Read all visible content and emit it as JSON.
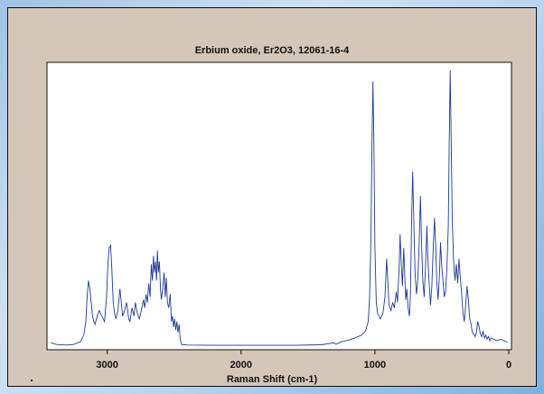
{
  "chart_data": {
    "type": "line",
    "title": "Erbium oxide, Er2O3, 12061-16-4",
    "xlabel": "Raman Shift (cm-1)",
    "ylabel": "",
    "x_reversed": true,
    "xlim": [
      3450,
      -20
    ],
    "xticks": [
      3000,
      2000,
      1000,
      0
    ],
    "tick_labels": [
      "3000",
      "2000",
      "1000",
      "0"
    ],
    "ylim": [
      0,
      100
    ],
    "grid": false,
    "series": [
      {
        "color": "#1f3a93",
        "points": [
          [
            3420,
            1.2
          ],
          [
            3380,
            0.6
          ],
          [
            3300,
            0.4
          ],
          [
            3250,
            0.6
          ],
          [
            3200,
            1.6
          ],
          [
            3175,
            4
          ],
          [
            3160,
            9
          ],
          [
            3150,
            18
          ],
          [
            3140,
            24
          ],
          [
            3130,
            21
          ],
          [
            3120,
            16
          ],
          [
            3110,
            11
          ],
          [
            3100,
            9
          ],
          [
            3090,
            8
          ],
          [
            3075,
            11
          ],
          [
            3060,
            13
          ],
          [
            3040,
            11
          ],
          [
            3020,
            9
          ],
          [
            3005,
            18
          ],
          [
            2995,
            30
          ],
          [
            2985,
            36
          ],
          [
            2975,
            37
          ],
          [
            2965,
            28
          ],
          [
            2955,
            16
          ],
          [
            2945,
            12
          ],
          [
            2935,
            10
          ],
          [
            2920,
            13
          ],
          [
            2905,
            21
          ],
          [
            2895,
            16
          ],
          [
            2885,
            11
          ],
          [
            2870,
            13
          ],
          [
            2855,
            16
          ],
          [
            2840,
            10
          ],
          [
            2830,
            9
          ],
          [
            2815,
            14
          ],
          [
            2800,
            11
          ],
          [
            2790,
            16
          ],
          [
            2775,
            12
          ],
          [
            2760,
            10
          ],
          [
            2745,
            13
          ],
          [
            2730,
            17
          ],
          [
            2720,
            14
          ],
          [
            2710,
            19
          ],
          [
            2700,
            16
          ],
          [
            2690,
            23
          ],
          [
            2680,
            18
          ],
          [
            2670,
            30
          ],
          [
            2662,
            24
          ],
          [
            2655,
            33
          ],
          [
            2648,
            27
          ],
          [
            2640,
            31
          ],
          [
            2632,
            24
          ],
          [
            2625,
            35
          ],
          [
            2618,
            27
          ],
          [
            2610,
            31
          ],
          [
            2602,
            21
          ],
          [
            2595,
            17
          ],
          [
            2585,
            21
          ],
          [
            2575,
            27
          ],
          [
            2566,
            18
          ],
          [
            2558,
            25
          ],
          [
            2550,
            16
          ],
          [
            2540,
            14
          ],
          [
            2530,
            19
          ],
          [
            2520,
            9
          ],
          [
            2512,
            11
          ],
          [
            2505,
            7
          ],
          [
            2496,
            10
          ],
          [
            2488,
            6
          ],
          [
            2480,
            9
          ],
          [
            2472,
            5
          ],
          [
            2462,
            8
          ],
          [
            2455,
            2.5
          ],
          [
            2445,
            0.6
          ],
          [
            2400,
            0.4
          ],
          [
            2200,
            0.3
          ],
          [
            2000,
            0.3
          ],
          [
            1800,
            0.3
          ],
          [
            1600,
            0.3
          ],
          [
            1400,
            0.5
          ],
          [
            1350,
            0.9
          ],
          [
            1310,
            1.2
          ],
          [
            1290,
            0.7
          ],
          [
            1250,
            1.6
          ],
          [
            1200,
            2.2
          ],
          [
            1150,
            3
          ],
          [
            1100,
            4
          ],
          [
            1070,
            5.5
          ],
          [
            1050,
            9
          ],
          [
            1040,
            18
          ],
          [
            1030,
            40
          ],
          [
            1022,
            75
          ],
          [
            1015,
            97
          ],
          [
            1008,
            76
          ],
          [
            1000,
            36
          ],
          [
            990,
            16
          ],
          [
            980,
            12
          ],
          [
            960,
            10
          ],
          [
            940,
            12
          ],
          [
            925,
            18
          ],
          [
            912,
            32
          ],
          [
            905,
            25
          ],
          [
            895,
            15
          ],
          [
            880,
            13
          ],
          [
            868,
            16
          ],
          [
            855,
            14
          ],
          [
            840,
            20
          ],
          [
            832,
            16
          ],
          [
            820,
            28
          ],
          [
            812,
            41
          ],
          [
            805,
            32
          ],
          [
            795,
            22
          ],
          [
            785,
            36
          ],
          [
            778,
            27
          ],
          [
            770,
            17
          ],
          [
            762,
            21
          ],
          [
            752,
            14
          ],
          [
            742,
            11
          ],
          [
            735,
            19
          ],
          [
            725,
            48
          ],
          [
            718,
            64
          ],
          [
            710,
            46
          ],
          [
            700,
            27
          ],
          [
            690,
            19
          ],
          [
            680,
            24
          ],
          [
            670,
            37
          ],
          [
            660,
            55
          ],
          [
            652,
            38
          ],
          [
            642,
            24
          ],
          [
            632,
            18
          ],
          [
            622,
            29
          ],
          [
            612,
            44
          ],
          [
            605,
            33
          ],
          [
            595,
            23
          ],
          [
            585,
            15
          ],
          [
            575,
            22
          ],
          [
            565,
            35
          ],
          [
            555,
            47
          ],
          [
            547,
            38
          ],
          [
            538,
            24
          ],
          [
            528,
            17
          ],
          [
            518,
            26
          ],
          [
            510,
            38
          ],
          [
            502,
            30
          ],
          [
            492,
            24
          ],
          [
            482,
            18
          ],
          [
            472,
            20
          ],
          [
            462,
            29
          ],
          [
            452,
            44
          ],
          [
            445,
            74
          ],
          [
            438,
            101
          ],
          [
            430,
            75
          ],
          [
            422,
            46
          ],
          [
            412,
            31
          ],
          [
            402,
            24
          ],
          [
            392,
            30
          ],
          [
            382,
            23
          ],
          [
            372,
            32
          ],
          [
            362,
            25
          ],
          [
            352,
            19
          ],
          [
            342,
            12
          ],
          [
            332,
            9
          ],
          [
            322,
            15
          ],
          [
            312,
            22
          ],
          [
            302,
            17
          ],
          [
            292,
            10
          ],
          [
            282,
            8
          ],
          [
            272,
            5
          ],
          [
            262,
            4.5
          ],
          [
            252,
            3.5
          ],
          [
            242,
            5
          ],
          [
            232,
            9
          ],
          [
            222,
            7
          ],
          [
            212,
            4.5
          ],
          [
            202,
            3.5
          ],
          [
            192,
            5.5
          ],
          [
            182,
            3
          ],
          [
            172,
            4
          ],
          [
            162,
            2.5
          ],
          [
            152,
            3.5
          ],
          [
            142,
            2
          ],
          [
            132,
            3
          ],
          [
            112,
            2.5
          ],
          [
            90,
            2
          ],
          [
            60,
            2.5
          ],
          [
            30,
            1.8
          ],
          [
            10,
            1.5
          ]
        ]
      }
    ]
  }
}
